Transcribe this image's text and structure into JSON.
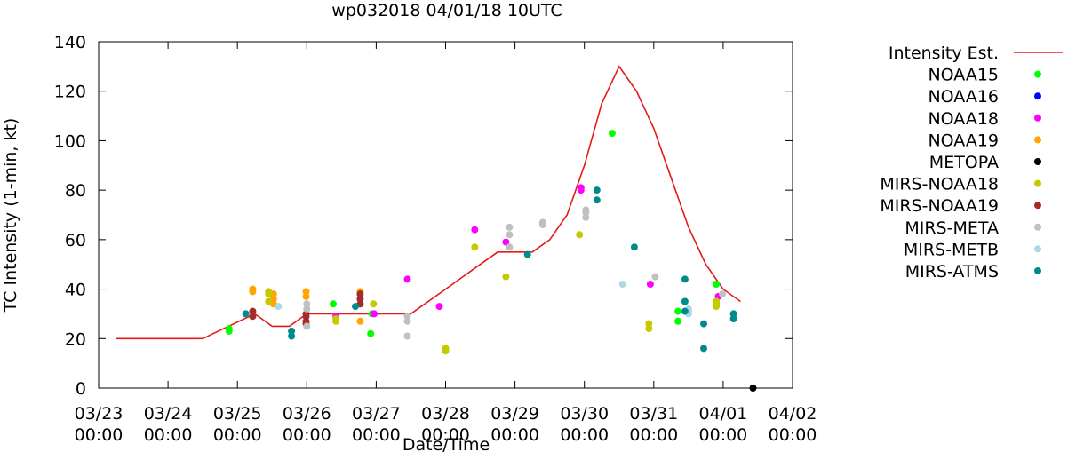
{
  "chart_data": {
    "type": "scatter",
    "title": "wp032018 04/01/18 10UTC",
    "xlabel": "Date/Time",
    "ylabel": "TC Intensity (1-min, kt)",
    "xlim": [
      0,
      10
    ],
    "ylim": [
      0,
      140
    ],
    "yticks": [
      0,
      20,
      40,
      60,
      80,
      100,
      120,
      140
    ],
    "xticks": [
      {
        "v": 0,
        "date": "03/23",
        "time": "00:00"
      },
      {
        "v": 1,
        "date": "03/24",
        "time": "00:00"
      },
      {
        "v": 2,
        "date": "03/25",
        "time": "00:00"
      },
      {
        "v": 3,
        "date": "03/26",
        "time": "00:00"
      },
      {
        "v": 4,
        "date": "03/27",
        "time": "00:00"
      },
      {
        "v": 5,
        "date": "03/28",
        "time": "00:00"
      },
      {
        "v": 6,
        "date": "03/29",
        "time": "00:00"
      },
      {
        "v": 7,
        "date": "03/30",
        "time": "00:00"
      },
      {
        "v": 8,
        "date": "03/31",
        "time": "00:00"
      },
      {
        "v": 9,
        "date": "04/01",
        "time": "00:00"
      },
      {
        "v": 10,
        "date": "04/02",
        "time": "00:00"
      }
    ],
    "intensity": {
      "name": "Intensity Est.",
      "color": "#e41a1c",
      "x": [
        0.25,
        1.5,
        2.25,
        2.5,
        2.75,
        3.0,
        3.5,
        3.75,
        4.0,
        4.5,
        5.0,
        5.5,
        5.75,
        6.0,
        6.25,
        6.5,
        6.75,
        7.0,
        7.25,
        7.5,
        7.75,
        8.0,
        8.25,
        8.5,
        8.75,
        9.0,
        9.25
      ],
      "y": [
        20,
        20,
        30,
        25,
        25,
        30,
        30,
        30,
        30,
        30,
        40,
        50,
        55,
        55,
        55,
        60,
        70,
        90,
        115,
        130,
        120,
        105,
        85,
        65,
        50,
        40,
        35
      ]
    },
    "series": [
      {
        "name": "NOAA15",
        "color": "#00ff00",
        "points": [
          [
            1.88,
            24
          ],
          [
            1.88,
            23
          ],
          [
            3.38,
            34
          ],
          [
            3.94,
            30
          ],
          [
            3.92,
            22
          ],
          [
            7.4,
            103
          ],
          [
            8.35,
            31
          ],
          [
            8.35,
            27
          ],
          [
            8.9,
            42
          ]
        ]
      },
      {
        "name": "NOAA16",
        "color": "#0000ff",
        "points": []
      },
      {
        "name": "NOAA18",
        "color": "#ff00ff",
        "points": [
          [
            3.42,
            29
          ],
          [
            3.97,
            30
          ],
          [
            4.45,
            44
          ],
          [
            4.91,
            33
          ],
          [
            5.42,
            64
          ],
          [
            5.87,
            59
          ],
          [
            6.95,
            81
          ],
          [
            6.95,
            80
          ],
          [
            7.95,
            42
          ],
          [
            8.93,
            37
          ]
        ]
      },
      {
        "name": "NOAA19",
        "color": "#ffa500",
        "points": [
          [
            2.22,
            40
          ],
          [
            2.22,
            39
          ],
          [
            2.52,
            36
          ],
          [
            2.52,
            34
          ],
          [
            2.52,
            38
          ],
          [
            2.99,
            39
          ],
          [
            2.99,
            37
          ],
          [
            3.77,
            39
          ],
          [
            3.77,
            27
          ]
        ]
      },
      {
        "name": "METOPA",
        "color": "#000000",
        "points": [
          [
            9.43,
            0
          ]
        ]
      },
      {
        "name": "MIRS-NOAA18",
        "color": "#c8c800",
        "points": [
          [
            2.45,
            39
          ],
          [
            2.45,
            38
          ],
          [
            2.45,
            35
          ],
          [
            3.42,
            28
          ],
          [
            3.42,
            27
          ],
          [
            3.96,
            34
          ],
          [
            5.0,
            16
          ],
          [
            5.0,
            15
          ],
          [
            5.42,
            57
          ],
          [
            5.87,
            45
          ],
          [
            6.93,
            62
          ],
          [
            7.93,
            26
          ],
          [
            7.93,
            24
          ],
          [
            8.9,
            33
          ],
          [
            8.9,
            34
          ],
          [
            8.9,
            35
          ]
        ]
      },
      {
        "name": "MIRS-NOAA19",
        "color": "#a52a2a",
        "points": [
          [
            2.22,
            31
          ],
          [
            2.22,
            29
          ],
          [
            2.99,
            30
          ],
          [
            2.99,
            29
          ],
          [
            2.99,
            27
          ],
          [
            2.99,
            26
          ],
          [
            3.77,
            38
          ],
          [
            3.77,
            36
          ],
          [
            3.77,
            34
          ]
        ]
      },
      {
        "name": "MIRS-META",
        "color": "#c0c0c0",
        "points": [
          [
            3.0,
            34
          ],
          [
            3.0,
            32
          ],
          [
            3.0,
            25
          ],
          [
            4.45,
            29
          ],
          [
            4.45,
            27
          ],
          [
            4.45,
            21
          ],
          [
            5.92,
            65
          ],
          [
            5.92,
            62
          ],
          [
            5.92,
            57
          ],
          [
            6.4,
            67
          ],
          [
            6.4,
            66
          ],
          [
            7.02,
            72
          ],
          [
            7.02,
            71
          ],
          [
            7.02,
            69
          ],
          [
            8.02,
            45
          ],
          [
            8.99,
            38
          ]
        ]
      },
      {
        "name": "MIRS-METB",
        "color": "#add8e6",
        "points": [
          [
            2.12,
            30
          ],
          [
            2.59,
            33
          ],
          [
            7.55,
            42
          ],
          [
            8.5,
            32
          ],
          [
            8.5,
            31
          ],
          [
            8.5,
            30
          ]
        ]
      },
      {
        "name": "MIRS-ATMS",
        "color": "#008b8b",
        "points": [
          [
            2.12,
            30
          ],
          [
            2.78,
            23
          ],
          [
            2.78,
            21
          ],
          [
            3.7,
            33
          ],
          [
            6.18,
            54
          ],
          [
            7.18,
            80
          ],
          [
            7.18,
            76
          ],
          [
            7.72,
            57
          ],
          [
            8.45,
            44
          ],
          [
            8.45,
            35
          ],
          [
            8.45,
            31
          ],
          [
            8.72,
            26
          ],
          [
            8.72,
            16
          ],
          [
            9.15,
            30
          ],
          [
            9.15,
            28
          ]
        ]
      }
    ]
  }
}
